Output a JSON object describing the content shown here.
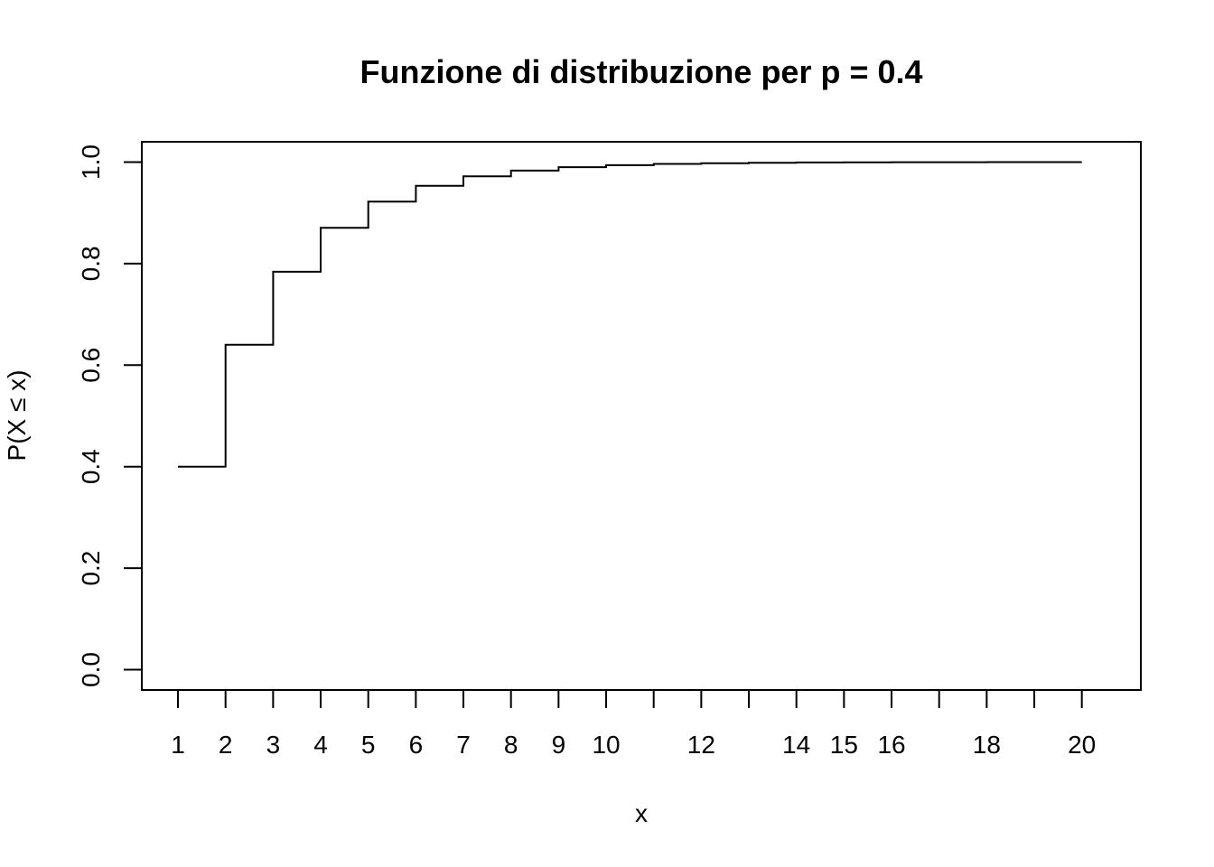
{
  "chart_data": {
    "type": "line",
    "title": "Funzione di distribuzione per p = 0.4",
    "xlabel": "x",
    "ylabel": "P(X ≤ x)",
    "x": [
      1,
      2,
      3,
      4,
      5,
      6,
      7,
      8,
      9,
      10,
      11,
      12,
      13,
      14,
      15,
      16,
      17,
      18,
      19,
      20
    ],
    "values": [
      0.4,
      0.64,
      0.784,
      0.8704,
      0.92224,
      0.953344,
      0.972006,
      0.983204,
      0.989922,
      0.993953,
      0.996372,
      0.997823,
      0.998694,
      0.999216,
      0.99953,
      0.999718,
      0.999831,
      0.999898,
      0.999939,
      0.999963
    ],
    "x_ticks": [
      1,
      2,
      3,
      4,
      5,
      6,
      7,
      8,
      9,
      10,
      11,
      12,
      13,
      14,
      15,
      16,
      17,
      18,
      19,
      20
    ],
    "x_tick_labels": [
      "1",
      "2",
      "3",
      "4",
      "5",
      "6",
      "7",
      "8",
      "9",
      "10",
      "",
      "12",
      "",
      "14",
      "15",
      "16",
      "",
      "18",
      "",
      "20"
    ],
    "y_ticks": [
      0.0,
      0.2,
      0.4,
      0.6,
      0.8,
      1.0
    ],
    "y_tick_labels": [
      "0.0",
      "0.2",
      "0.4",
      "0.6",
      "0.8",
      "1.0"
    ],
    "xlim": [
      0.24,
      21.24
    ],
    "ylim": [
      -0.04,
      1.04
    ],
    "grid": false,
    "step": true
  }
}
